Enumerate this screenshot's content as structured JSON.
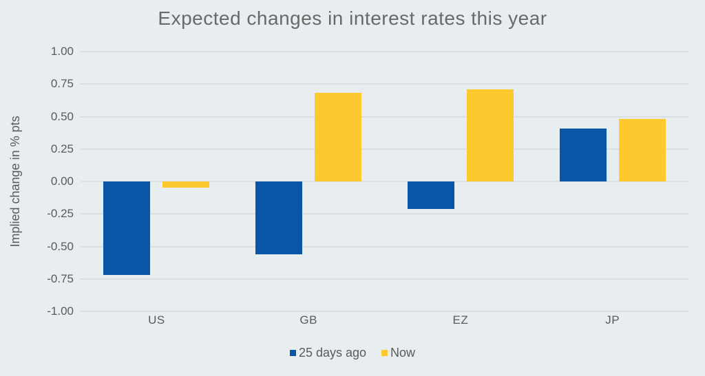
{
  "title": "Expected changes in interest rates this year",
  "colors": {
    "background": "#e8edf0",
    "grid": "#dadfe2",
    "series_blue": "#0a55a6",
    "series_yellow": "#fec92f",
    "title_text": "#696969",
    "axis_text": "#5a5a5a"
  },
  "chart_data": {
    "type": "bar",
    "title": "Expected changes in interest rates this year",
    "categories": [
      "US",
      "GB",
      "EZ",
      "JP"
    ],
    "series": [
      {
        "name": "25 days ago",
        "color": "#0a55a6",
        "values": [
          -0.72,
          -0.56,
          -0.21,
          0.41
        ]
      },
      {
        "name": "Now",
        "color": "#fec92f",
        "values": [
          -0.05,
          0.68,
          0.71,
          0.48
        ]
      }
    ],
    "xlabel": "",
    "ylabel": "Implied change in % pts",
    "ylim": [
      -1.0,
      1.0
    ],
    "ytick_step": 0.25,
    "ytick_labels": [
      "1.00",
      "0.75",
      "0.50",
      "0.25",
      "0.00",
      "-0.25",
      "-0.50",
      "-0.75",
      "-1.00"
    ],
    "grid": true,
    "legend_position": "bottom"
  }
}
